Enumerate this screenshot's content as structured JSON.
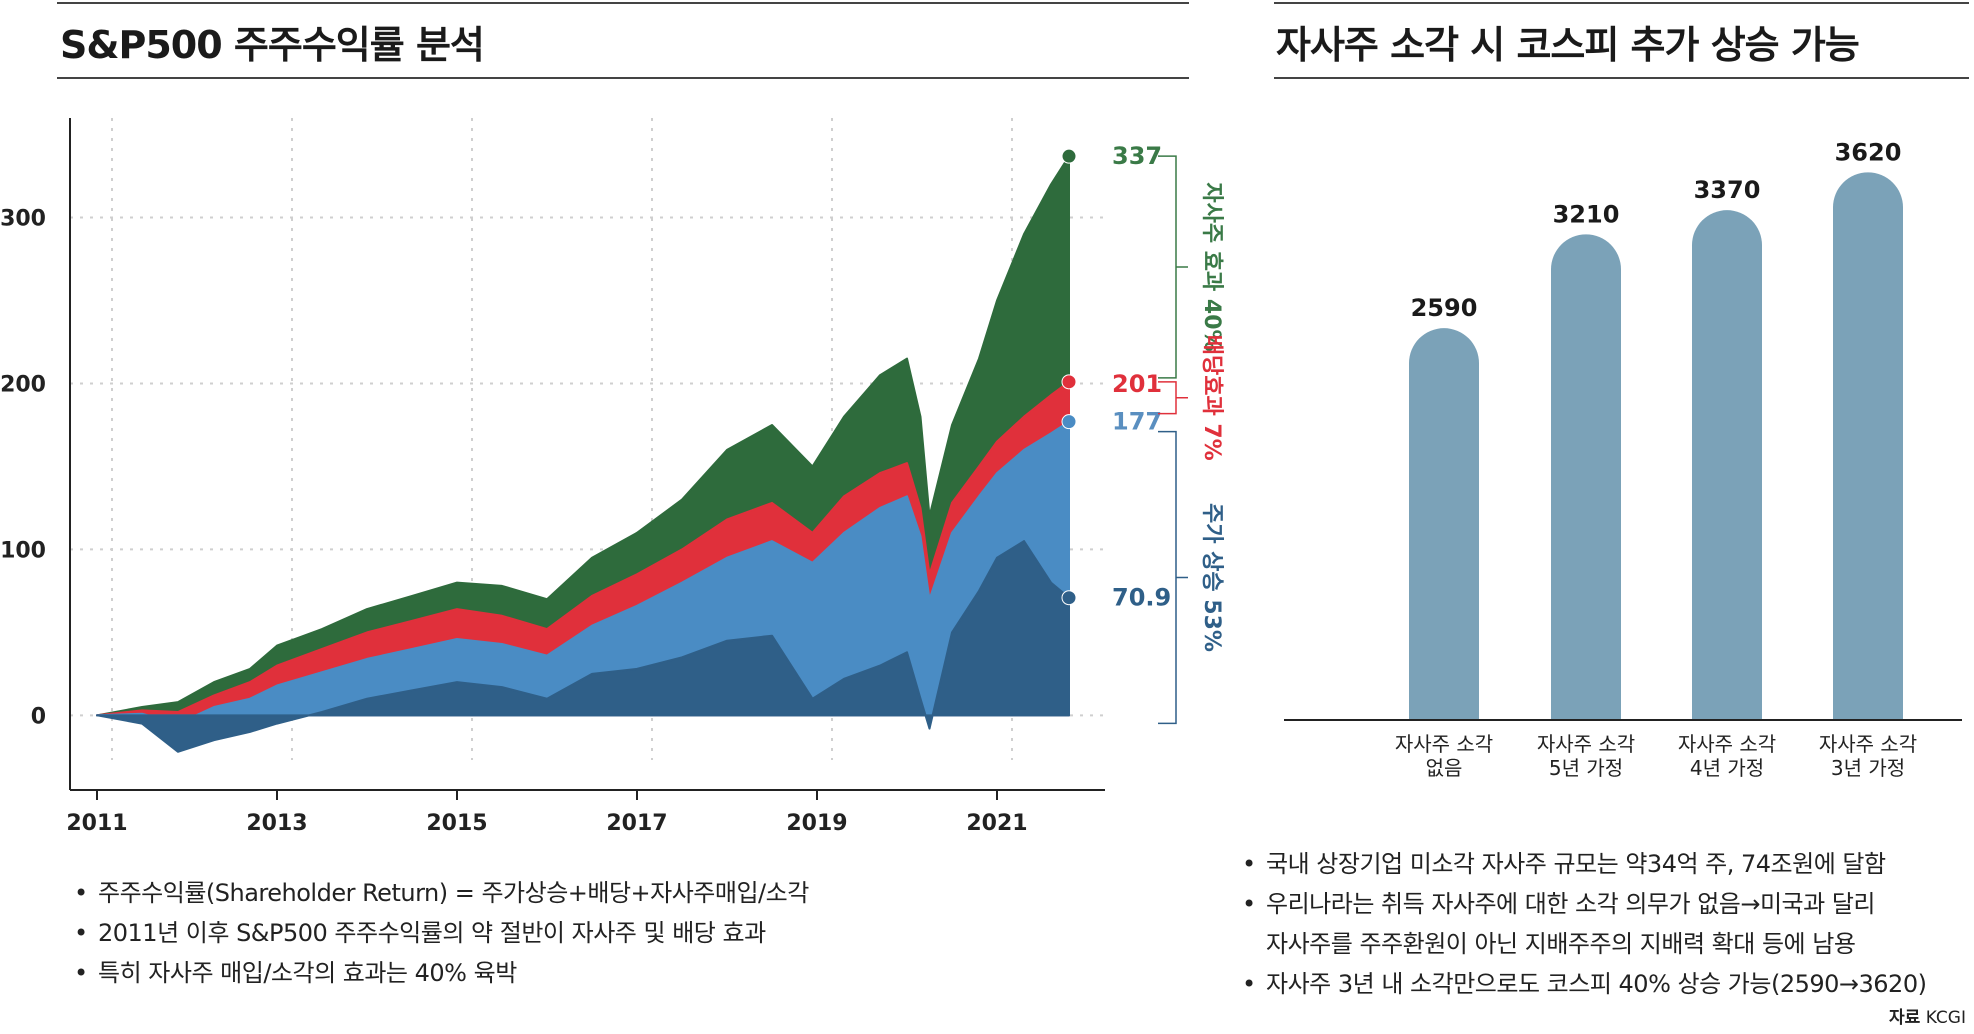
{
  "left_panel": {
    "title": "S&P500 주주수익률 분석",
    "notes": [
      "주주수익률(Shareholder Return) = 주가상승+배당+자사주매입/소각",
      "2011년 이후 S&P500 주주수익률의 약 절반이 자사주 및 배당 효과",
      "특히 자사주 매입/소각의 효과는 40% 육박"
    ]
  },
  "right_panel": {
    "title": "자사주 소각 시 코스피 추가 상승 가능",
    "notes": [
      "국내 상장기업 미소각 자사주 규모는 약34억 주, 74조원에 달함",
      "우리나라는 취득 자사주에 대한 소각 의무가 없음→미국과 달리",
      "자사주를 주주환원이 아닌 지배주주의 지배력 확대 등에 남용",
      "자사주 3년 내 소각만으로도 코스피 40% 상승 가능(2590→3620)"
    ],
    "source_label": "자료",
    "source_name": "KCGI"
  },
  "colors": {
    "buyback": "#2e6b3c",
    "dividend": "#e0303b",
    "price": "#4a8cc4",
    "base": "#2f5f88",
    "bar": "#7ba2b8",
    "label_green": "#3a7a47",
    "label_red": "#e0303b",
    "label_blue": "#5a8fc0",
    "label_navy": "#2f5f88"
  },
  "chart_data": [
    {
      "type": "area",
      "title": "S&P500 주주수익률 분석",
      "xlabel": "",
      "ylabel": "",
      "xlim": [
        2010.7,
        2022.2
      ],
      "ylim": [
        -45,
        360
      ],
      "grid": true,
      "yticks": [
        0,
        100,
        200,
        300
      ],
      "xticks": [
        2011,
        2013,
        2015,
        2017,
        2019,
        2021
      ],
      "x": [
        2011.0,
        2011.5,
        2011.9,
        2012.3,
        2012.7,
        2013.0,
        2013.5,
        2014.0,
        2014.5,
        2015.0,
        2015.5,
        2016.0,
        2016.5,
        2017.0,
        2017.5,
        2018.0,
        2018.5,
        2018.95,
        2019.3,
        2019.7,
        2020.0,
        2020.15,
        2020.25,
        2020.5,
        2020.8,
        2021.0,
        2021.3,
        2021.6,
        2021.8
      ],
      "series": [
        {
          "name": "자사주 효과",
          "values": [
            0,
            5,
            8,
            20,
            28,
            42,
            52,
            64,
            72,
            80,
            78,
            70,
            95,
            110,
            130,
            160,
            175,
            150,
            180,
            205,
            215,
            180,
            120,
            175,
            215,
            250,
            290,
            320,
            337
          ]
        },
        {
          "name": "배당효과",
          "values": [
            0,
            3,
            2,
            12,
            20,
            30,
            40,
            50,
            57,
            64,
            60,
            52,
            72,
            85,
            100,
            118,
            128,
            110,
            132,
            146,
            152,
            125,
            85,
            128,
            150,
            165,
            180,
            193,
            201
          ]
        },
        {
          "name": "주가 상승",
          "values": [
            0,
            1,
            -5,
            5,
            10,
            18,
            26,
            34,
            40,
            46,
            43,
            36,
            54,
            66,
            80,
            95,
            105,
            92,
            110,
            125,
            132,
            108,
            70,
            110,
            132,
            146,
            160,
            170,
            177
          ]
        },
        {
          "name": "",
          "values": [
            0,
            -5,
            -22,
            -15,
            -10,
            -5,
            2,
            10,
            15,
            20,
            17,
            10,
            25,
            28,
            35,
            45,
            48,
            10,
            22,
            30,
            38,
            10,
            -8,
            50,
            75,
            95,
            105,
            80,
            70.9
          ]
        }
      ],
      "end_labels": [
        "337",
        "201",
        "177",
        "70.9"
      ],
      "bracket_labels": [
        "자사주 효과 40%",
        "배당효과 7%",
        "주가 상승 53%"
      ]
    },
    {
      "type": "bar",
      "title": "자사주 소각 시 코스피 추가 상승 가능",
      "categories": [
        [
          "자사주 소각",
          "없음"
        ],
        [
          "자사주 소각",
          "5년 가정"
        ],
        [
          "자사주 소각",
          "4년 가정"
        ],
        [
          "자사주 소각",
          "3년 가정"
        ]
      ],
      "values": [
        2590,
        3210,
        3370,
        3620
      ],
      "value_labels": [
        "2590",
        "3210",
        "3370",
        "3620"
      ],
      "ylim": [
        0,
        3900
      ],
      "grid": false
    }
  ]
}
